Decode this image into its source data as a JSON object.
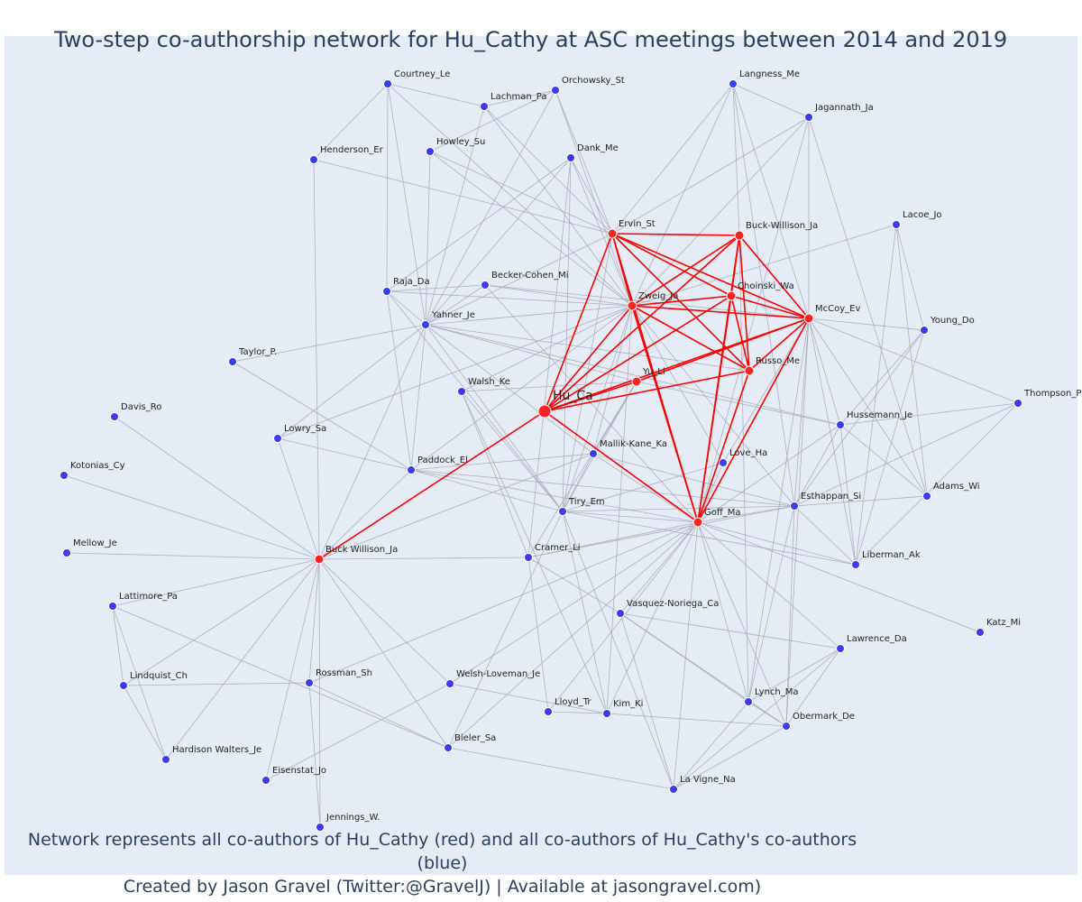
{
  "title": "Two-step co-authorship network for Hu_Cathy at ASC meetings between 2014 and 2019",
  "footnote": {
    "line1": "Network represents all co-authors of Hu_Cathy (red) and all co-authors of Hu_Cathy's co-authors (blue)",
    "line2": "Created by Jason Gravel (Twitter:@GravelJ) | Available at jasongravel.com)"
  },
  "colors": {
    "plot_bg": "#e5ecf6",
    "red": "#ff0000",
    "blue": "#3b3bf0",
    "edge": "#a6a6b4"
  },
  "focus_node": "Hu_Ca",
  "red_nodes": [
    "Ervin_St",
    "Buck-Willison_Ja",
    "Choinski_Wa",
    "Zweig_Ja",
    "McCoy_Ev",
    "Russo_Me",
    "Yu_Li",
    "Goff_Ma",
    "Buck Willison_Ja"
  ],
  "blue_nodes": [
    "Courtney_Le",
    "Orchowsky_St",
    "Langness_Me",
    "Lachman_Pa",
    "Jagannath_Ja",
    "Howley_Su",
    "Dank_Me",
    "Henderson_Er",
    "Lacoe_Jo",
    "Raja_Da",
    "Becker-Cohen_Mi",
    "Yahner_Je",
    "Young_Do",
    "Taylor_P.",
    "Walsh_Ke",
    "Thompson_P",
    "Davis_Ro",
    "Hussemann_Je",
    "Lowry_Sa",
    "Mallik-Kane_Ka",
    "Love_Ha",
    "Paddock_El",
    "Kotonias_Cy",
    "Adams_Wi",
    "Esthappan_Si",
    "Tiry_Em",
    "Mellow_Je",
    "Cramer_Li",
    "Liberman_Ak",
    "Lattimore_Pa",
    "Vasquez-Noriega_Ca",
    "Katz_Mi",
    "Lawrence_Da",
    "Lindquist_Ch",
    "Rossman_Sh",
    "Welsh-Loveman_Je",
    "Lynch_Ma",
    "Lloyd_Tr",
    "Kim_Ki",
    "Obermark_De",
    "Bieler_Sa",
    "Hardison Walters_Je",
    "Eisenstat_Jo",
    "La Vigne_Na",
    "Jennings_W."
  ]
}
